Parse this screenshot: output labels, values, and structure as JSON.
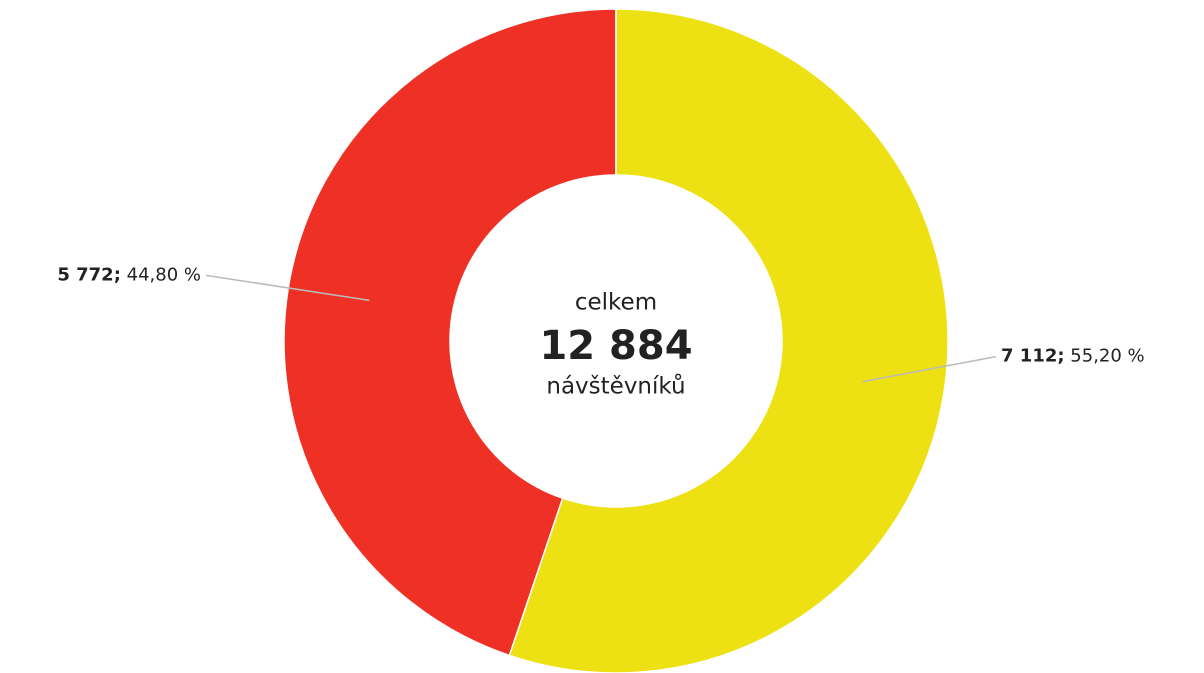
{
  "chart_data": {
    "type": "donut",
    "center": {
      "title": "celkem",
      "total": {
        "value": 12884,
        "label": "12 884"
      },
      "subtitle": "návštěvníků"
    },
    "series": [
      {
        "values": [
          7112,
          5772
        ],
        "value_labels": [
          "7 112;",
          "5 772;"
        ],
        "percentages": [
          55.2,
          44.8
        ],
        "percentage_labels": [
          "55,20 %",
          "44,80 %"
        ],
        "colors": [
          "#ede013",
          "#ee3124"
        ]
      }
    ]
  }
}
